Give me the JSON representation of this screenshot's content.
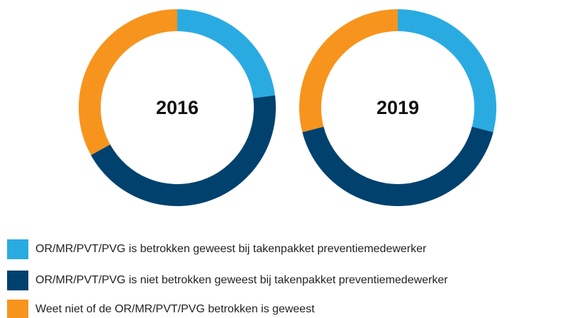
{
  "chart_data": [
    {
      "type": "pie",
      "title": "2016",
      "categories": [
        "OR/MR/PVT/PVG is betrokken geweest bij takenpakket preventiemedewerker",
        "OR/MR/PVT/PVG is niet betrokken geweest bij takenpakket preventiemedewerker",
        "Weet niet of de OR/MR/PVT/PVG betrokken is geweest"
      ],
      "values": [
        23,
        44,
        33
      ],
      "colors": [
        "#29abe2",
        "#00416e",
        "#f7941d"
      ]
    },
    {
      "type": "pie",
      "title": "2019",
      "values": [
        29,
        42,
        29
      ],
      "colors": [
        "#29abe2",
        "#00416e",
        "#f7941d"
      ]
    }
  ]
}
